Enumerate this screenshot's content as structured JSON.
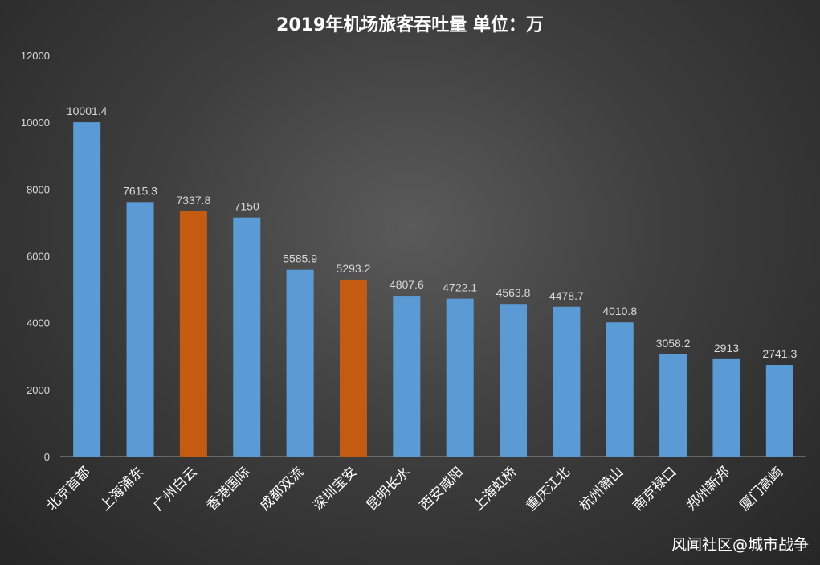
{
  "chart_data": {
    "type": "bar",
    "title": "2019年机场旅客吞吐量 单位：万",
    "xlabel": "",
    "ylabel": "",
    "ylim": [
      0,
      12000
    ],
    "yticks": [
      "0",
      "2000",
      "4000",
      "6000",
      "8000",
      "10000",
      "12000"
    ],
    "grid": false,
    "legend": "none",
    "categories": [
      "北京首都",
      "上海浦东",
      "广州白云",
      "香港国际",
      "成都双流",
      "深圳宝安",
      "昆明长水",
      "西安咸阳",
      "上海虹桥",
      "重庆江北",
      "杭州萧山",
      "南京禄口",
      "郑州新郑",
      "厦门高崎"
    ],
    "values": [
      10001.4,
      7615.3,
      7337.8,
      7150,
      5585.9,
      5293.2,
      4807.6,
      4722.1,
      4563.8,
      4478.7,
      4010.8,
      3058.2,
      2913,
      2741.3
    ],
    "value_labels": [
      "10001.4",
      "7615.3",
      "7337.8",
      "7150",
      "5585.9",
      "5293.2",
      "4807.6",
      "4722.1",
      "4563.8",
      "4478.7",
      "4010.8",
      "3058.2",
      "2913",
      "2741.3"
    ],
    "bar_colors": [
      "#5b9bd5",
      "#5b9bd5",
      "#c55a11",
      "#5b9bd5",
      "#5b9bd5",
      "#c55a11",
      "#5b9bd5",
      "#5b9bd5",
      "#5b9bd5",
      "#5b9bd5",
      "#5b9bd5",
      "#5b9bd5",
      "#5b9bd5",
      "#5b9bd5"
    ]
  },
  "watermark": "风闻社区@城市战争",
  "colors": {
    "text": "#d9d9d9",
    "axis": "#9a9a9a",
    "blue_bar": "#5b9bd5",
    "orange_bar": "#c55a11"
  }
}
